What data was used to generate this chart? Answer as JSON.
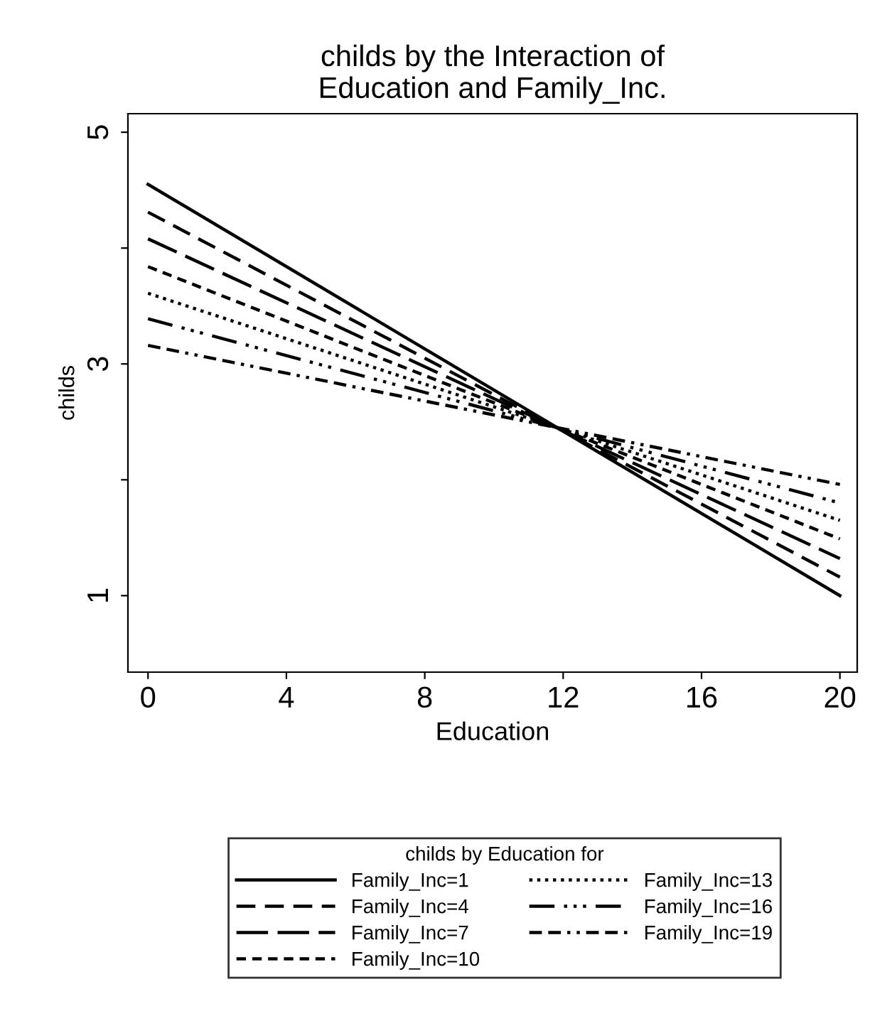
{
  "chart_data": {
    "type": "line",
    "title": "childs by the Interaction of\nEducation and Family_Inc.",
    "xlabel": "Education",
    "ylabel": "childs",
    "legend_title": "childs by Education for",
    "legend": "bottom",
    "grid": false,
    "marker": "none",
    "x": [
      0,
      20
    ],
    "xlim": [
      -0.58,
      20.5
    ],
    "xticks": [
      0,
      4,
      8,
      12,
      16,
      20
    ],
    "ylim": [
      0.34,
      5.16
    ],
    "yticks": [
      1,
      {
        "value": 2,
        "label": null
      },
      3,
      {
        "value": 4,
        "label": null
      },
      5
    ],
    "series": [
      {
        "name": "Family_Inc=1",
        "color": "#000000",
        "line_style": "solid",
        "values": [
          4.55,
          1.0
        ]
      },
      {
        "name": "Family_Inc=4",
        "color": "#000000",
        "line_style": "dashed",
        "values": [
          4.31,
          1.16
        ]
      },
      {
        "name": "Family_Inc=7",
        "color": "#000000",
        "line_style": "longdash",
        "values": [
          4.08,
          1.32
        ]
      },
      {
        "name": "Family_Inc=10",
        "color": "#000000",
        "line_style": "shortdash",
        "values": [
          3.84,
          1.49
        ]
      },
      {
        "name": "Family_Inc=13",
        "color": "#000000",
        "line_style": "dotted",
        "values": [
          3.61,
          1.65
        ]
      },
      {
        "name": "Family_Inc=16",
        "color": "#000000",
        "line_style": "longdashdotted",
        "values": [
          3.39,
          1.8
        ]
      },
      {
        "name": "Family_Inc=19",
        "color": "#000000",
        "line_style": "dashdotted",
        "values": [
          3.16,
          1.96
        ]
      }
    ]
  }
}
